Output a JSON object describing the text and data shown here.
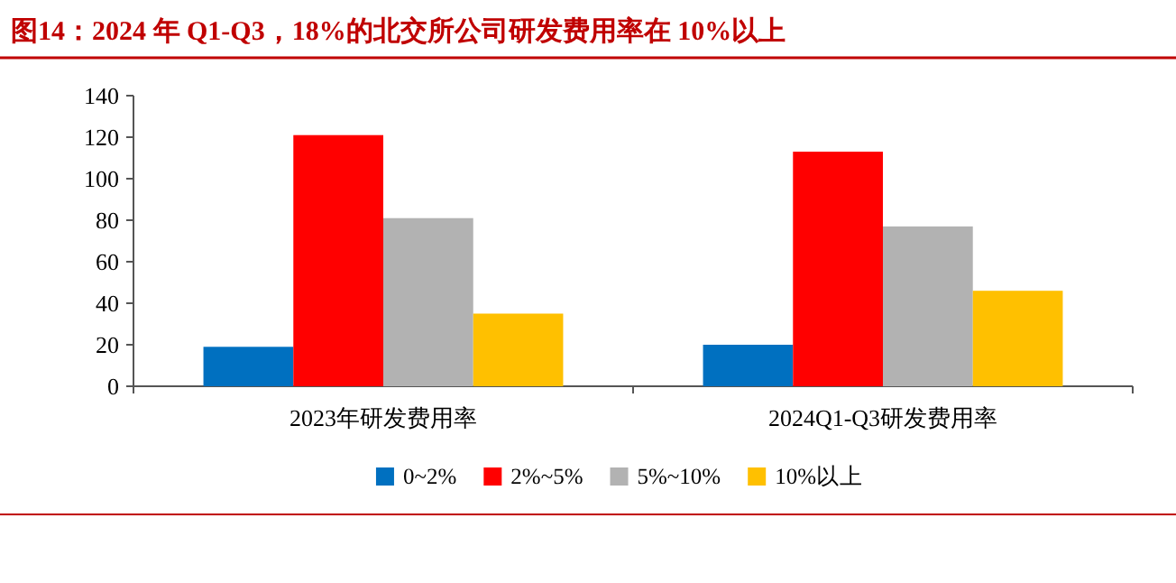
{
  "chart_data": {
    "type": "bar",
    "title": "图14：2024 年 Q1-Q3，18%的北交所公司研发费用率在 10%以上",
    "categories": [
      "2023年研发费用率",
      "2024Q1-Q3研发费用率"
    ],
    "series": [
      {
        "name": "0~2%",
        "color": "#0070c0",
        "values": [
          19,
          20
        ]
      },
      {
        "name": "2%~5%",
        "color": "#ff0000",
        "values": [
          121,
          113
        ]
      },
      {
        "name": "5%~10%",
        "color": "#b2b2b2",
        "values": [
          81,
          77
        ]
      },
      {
        "name": "10%以上",
        "color": "#ffc000",
        "values": [
          35,
          46
        ]
      }
    ],
    "ylim": [
      0,
      140
    ],
    "yticks": [
      0,
      20,
      40,
      60,
      80,
      100,
      120,
      140
    ],
    "grid": false,
    "legend": "bottom"
  }
}
